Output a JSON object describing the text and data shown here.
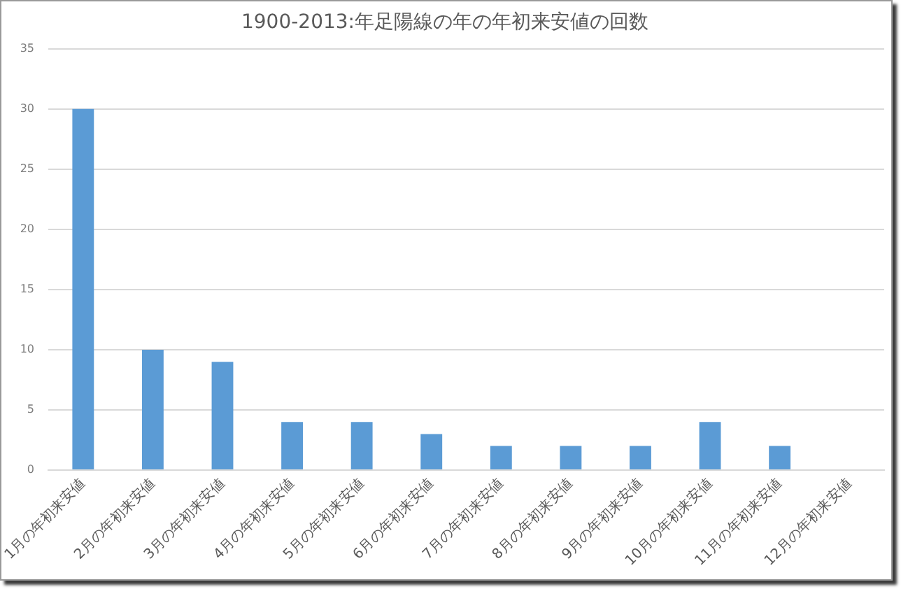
{
  "chart_data": {
    "type": "bar",
    "title": "1900-2013:年足陽線の年の年初来安値の回数",
    "categories": [
      "1月の年初来安値",
      "2月の年初来安値",
      "3月の年初来安値",
      "4月の年初来安値",
      "5月の年初来安値",
      "6月の年初来安値",
      "7月の年初来安値",
      "8月の年初来安値",
      "9月の年初来安値",
      "10月の年初来安値",
      "11月の年初来安値",
      "12月の年初来安値"
    ],
    "values": [
      30,
      10,
      9,
      4,
      4,
      3,
      2,
      2,
      2,
      4,
      2,
      0
    ],
    "color": "#5b9bd5",
    "ylim": [
      0,
      35
    ],
    "yticks": [
      0,
      5,
      10,
      15,
      20,
      25,
      30,
      35
    ],
    "grid": "y"
  }
}
